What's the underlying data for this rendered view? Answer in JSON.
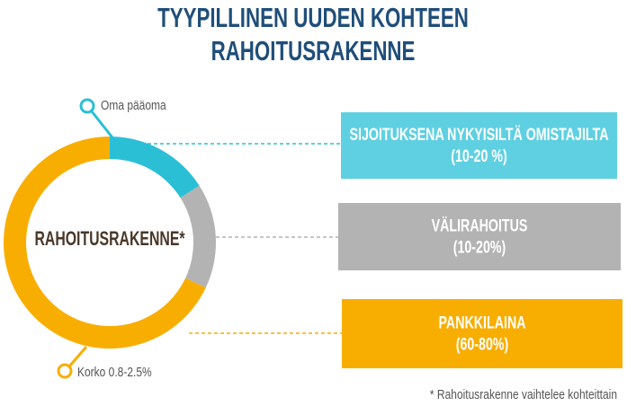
{
  "chart_data": {
    "type": "donut",
    "title": [
      "TYYPILLINEN UUDEN KOHTEEN",
      "RAHOITUSRAKENNE"
    ],
    "center_label": "RAHOITUSRAKENNE*",
    "categories": [
      "SIJOITUKSENA NYKYISILTÄ OMISTAJILTA",
      "VÄLIRAHOITUS",
      "PANKKILAINA"
    ],
    "ranges": [
      "(10-20 %)",
      "(10-20%)",
      "(60-80%)"
    ],
    "values": [
      16,
      16,
      68
    ],
    "colors": [
      "#2bbfd6",
      "#b3b3b3",
      "#f8ae00"
    ],
    "box_colors": [
      "#5fd0e2",
      "#b3b3b3",
      "#f8ae00"
    ],
    "annotations": [
      "Oma pääoma",
      "Korko 0.8-2.5%"
    ],
    "footnote": "* Rahoitusrakenne vaihtelee kohteittain"
  }
}
